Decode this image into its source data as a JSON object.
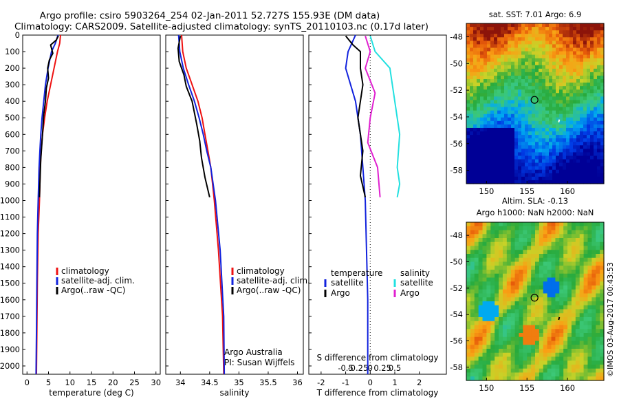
{
  "header": {
    "line1": "Argo profile: csiro 5903264_254 02-Jan-2011 52.727S 155.93E (DM data)",
    "line2": "Climatology: CARS2009. Satellite-adjusted climatology: synTS_20110103.nc (0.17d later)"
  },
  "colors": {
    "climatology": "#ee1111",
    "satellite": "#1122dd",
    "argo": "#000000",
    "sat_salinity": "#22e0e0",
    "argo_salinity": "#e020d0"
  },
  "chart_data": [
    {
      "type": "line",
      "xlabel": "temperature (deg C)",
      "ylabel": "",
      "xlim": [
        -1,
        31
      ],
      "ylim": [
        2050,
        0
      ],
      "xticks": [
        "0",
        "5",
        "10",
        "15",
        "20",
        "25",
        "30"
      ],
      "yticks": [
        "0",
        "100",
        "200",
        "300",
        "400",
        "500",
        "600",
        "700",
        "800",
        "900",
        "1000",
        "1100",
        "1200",
        "1300",
        "1400",
        "1500",
        "1600",
        "1700",
        "1800",
        "1900",
        "2000"
      ],
      "legend": [
        "climatology",
        "satellite-adj. clim.",
        "Argo(..raw -QC)"
      ],
      "series": [
        {
          "name": "climatology",
          "color": "climatology",
          "x": [
            7.8,
            7.6,
            7.1,
            6.3,
            5.5,
            4.7,
            4.1,
            3.6,
            3.3,
            3.1,
            2.9,
            2.6,
            2.4,
            2.3,
            2.2
          ],
          "y": [
            0,
            50,
            100,
            200,
            300,
            400,
            500,
            600,
            700,
            800,
            1000,
            1200,
            1500,
            1800,
            2050
          ]
        },
        {
          "name": "satellite-adj. clim.",
          "color": "satellite",
          "x": [
            7.2,
            6.6,
            5.7,
            4.9,
            4.3,
            3.9,
            3.5,
            3.2,
            3.0,
            2.8,
            2.6,
            2.4,
            2.3,
            2.2,
            2.1
          ],
          "y": [
            0,
            50,
            100,
            200,
            300,
            400,
            500,
            600,
            700,
            800,
            1000,
            1200,
            1500,
            1800,
            2050
          ]
        },
        {
          "name": "Argo(..raw -QC)",
          "color": "argo",
          "x": [
            7.3,
            6.8,
            5.5,
            6.0,
            5.2,
            4.8,
            5.0,
            4.5,
            4.3,
            3.9,
            3.6,
            3.2,
            3.0,
            2.9
          ],
          "y": [
            5,
            30,
            60,
            110,
            150,
            200,
            260,
            320,
            400,
            480,
            600,
            750,
            900,
            980
          ]
        }
      ]
    },
    {
      "type": "line",
      "xlabel": "salinity",
      "ylabel": "",
      "xlim": [
        33.75,
        36.1
      ],
      "ylim": [
        2050,
        0
      ],
      "xticks": [
        "34",
        "34.5",
        "35",
        "35.5",
        "36"
      ],
      "legend": [
        "climatology",
        "satellite-adj. clim.",
        "Argo(..raw -QC)"
      ],
      "annotation": [
        "Argo Australia",
        "PI: Susan Wijffels"
      ],
      "series": [
        {
          "name": "climatology",
          "color": "climatology",
          "x": [
            34.02,
            34.04,
            34.1,
            34.2,
            34.3,
            34.37,
            34.42,
            34.47,
            34.52,
            34.58,
            34.65,
            34.72,
            34.74
          ],
          "y": [
            0,
            100,
            200,
            300,
            400,
            500,
            600,
            700,
            800,
            1000,
            1300,
            1700,
            2050
          ]
        },
        {
          "name": "satellite-adj. clim.",
          "color": "satellite",
          "x": [
            33.97,
            33.99,
            34.05,
            34.14,
            34.24,
            34.32,
            34.39,
            34.45,
            34.52,
            34.6,
            34.68,
            34.74,
            34.75
          ],
          "y": [
            0,
            100,
            200,
            300,
            400,
            500,
            600,
            700,
            800,
            1000,
            1300,
            1700,
            2050
          ]
        },
        {
          "name": "Argo(..raw -QC)",
          "color": "argo",
          "x": [
            34.0,
            33.96,
            33.98,
            34.06,
            34.1,
            34.2,
            34.24,
            34.28,
            34.33,
            34.36,
            34.42,
            34.5
          ],
          "y": [
            5,
            80,
            160,
            240,
            310,
            400,
            470,
            540,
            640,
            740,
            860,
            980
          ]
        }
      ]
    },
    {
      "type": "line",
      "xlabel": "T difference from climatology",
      "xlabel2": "S difference from climatology",
      "xlim": [
        -2.5,
        3.1
      ],
      "ylim": [
        2050,
        0
      ],
      "xticks": [
        "-2",
        "-1",
        "0",
        "1",
        "2"
      ],
      "xticks2": [
        "-0.5",
        "-0.25",
        "0",
        "0.25",
        "0.5"
      ],
      "legend_title_t": "temperature",
      "legend_title_s": "salinity",
      "legend": [
        "satellite",
        "Argo",
        "satellite",
        "Argo"
      ],
      "series": [
        {
          "name": "satellite",
          "color": "satellite",
          "x": [
            -0.6,
            -0.9,
            -1.0,
            -0.6,
            -0.4,
            -0.3,
            -0.2,
            -0.15,
            -0.1,
            -0.1
          ],
          "y": [
            0,
            100,
            200,
            400,
            600,
            800,
            1000,
            1300,
            1600,
            2050
          ]
        },
        {
          "name": "Argo",
          "color": "argo",
          "x": [
            -1.0,
            -0.7,
            -0.4,
            -0.4,
            -0.3,
            -0.5,
            -0.3,
            -0.4,
            -0.2
          ],
          "y": [
            5,
            60,
            100,
            200,
            300,
            500,
            700,
            850,
            980
          ]
        },
        {
          "name": "satellite",
          "color": "sat_salinity",
          "x": [
            0.0,
            0.1,
            0.4,
            0.5,
            0.6,
            0.55,
            0.6,
            0.55
          ],
          "y": [
            5,
            100,
            200,
            400,
            600,
            800,
            900,
            980
          ]
        },
        {
          "name": "Argo",
          "color": "argo_salinity",
          "x": [
            -0.1,
            0.0,
            -0.1,
            0.1,
            0.0,
            -0.05,
            0.15,
            0.2
          ],
          "y": [
            5,
            100,
            200,
            350,
            500,
            650,
            800,
            980
          ]
        }
      ]
    },
    {
      "type": "heatmap",
      "title": "sat. SST: 7.01 Argo: 6.9",
      "xticks": [
        "150",
        "155",
        "160"
      ],
      "yticks": [
        "-48",
        "-50",
        "-52",
        "-54",
        "-56",
        "-58"
      ],
      "xlim": [
        147.5,
        164.5
      ],
      "ylim": [
        -59,
        -47
      ]
    },
    {
      "type": "heatmap",
      "title": [
        "Altim. SLA: -0.13",
        "Argo h1000: NaN h2000: NaN"
      ],
      "xticks": [
        "150",
        "155",
        "160"
      ],
      "yticks": [
        "-48",
        "-50",
        "-52",
        "-54",
        "-56",
        "-58"
      ],
      "xlim": [
        147.5,
        164.5
      ],
      "ylim": [
        -59,
        -47
      ]
    }
  ],
  "footer": {
    "credit": "©IMOS 03-Aug-2017 00:43:53"
  }
}
